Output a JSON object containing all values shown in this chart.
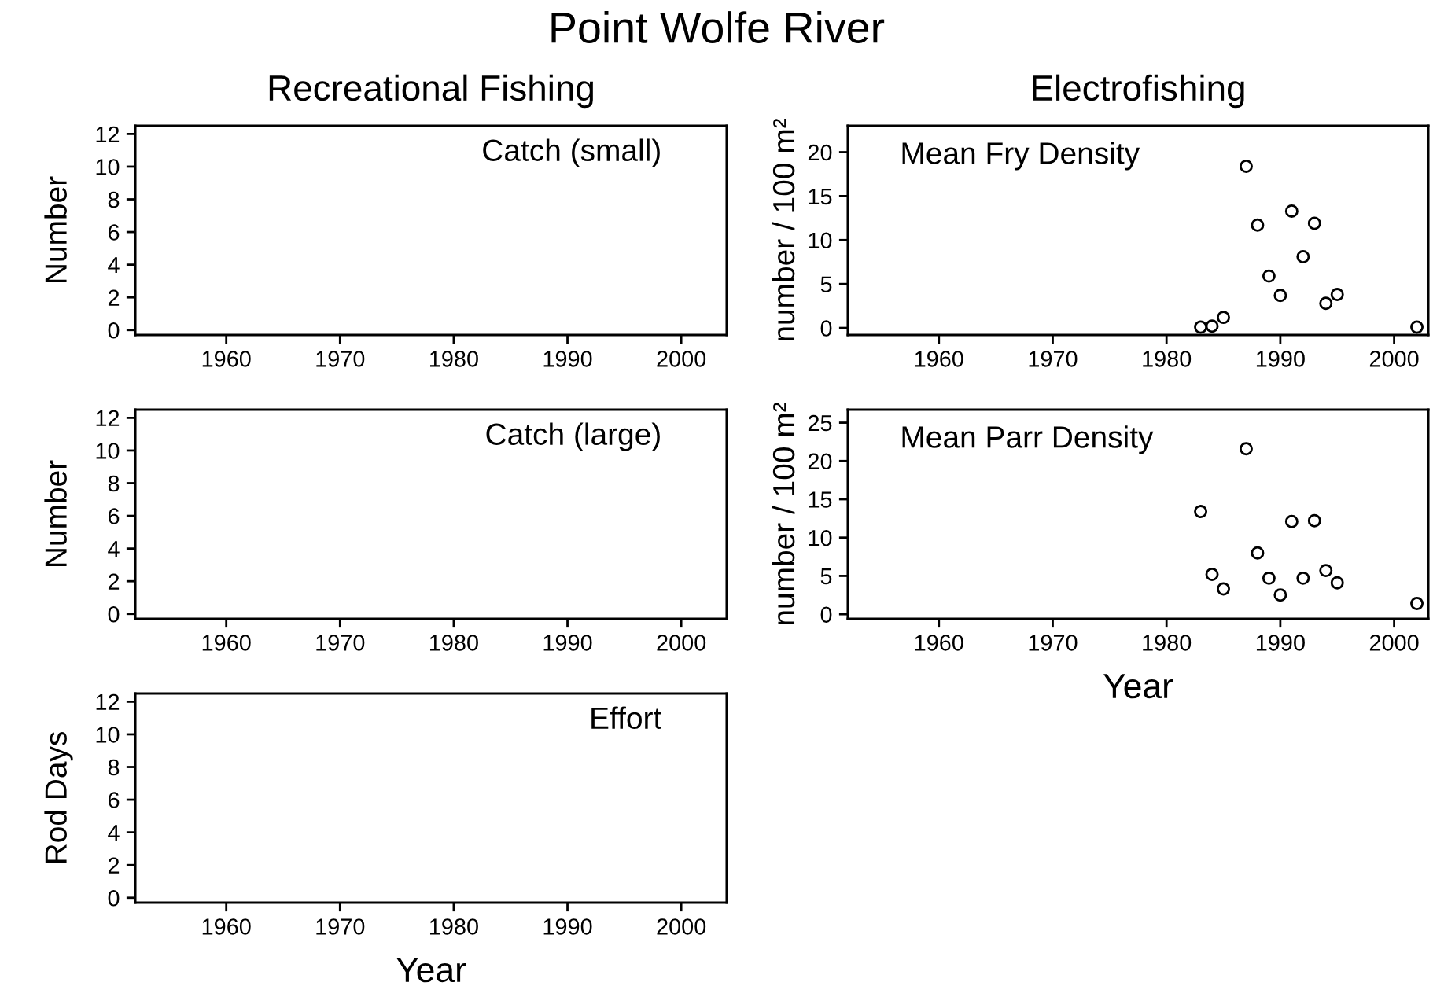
{
  "chart_data": [
    {
      "type": "scatter",
      "title": "Catch (small)",
      "ylabel": "Number",
      "annotations": [
        "Point Wolfe River",
        "Recreational Fishing"
      ],
      "xlim": [
        1952,
        2004
      ],
      "xticks": [
        1960,
        1970,
        1980,
        1990,
        2000
      ],
      "ylim": [
        -0.3,
        12.5
      ],
      "yticks": [
        0,
        2,
        4,
        6,
        8,
        10,
        12
      ]
    },
    {
      "type": "scatter",
      "title": "Mean Fry Density",
      "ylabel": "number / 100 m²",
      "annotations": [
        "Electrofishing"
      ],
      "x": [
        1983,
        1984,
        1985,
        1987,
        1988,
        1989,
        1990,
        1991,
        1992,
        1993,
        1994,
        1995,
        2002
      ],
      "series": [
        {
          "color": "#000000",
          "values": [
            0.1,
            0.2,
            1.2,
            18.4,
            11.7,
            5.9,
            3.7,
            13.3,
            8.1,
            11.9,
            2.8,
            3.8,
            0.1
          ]
        }
      ],
      "marker": "circle",
      "xlim": [
        1952,
        2003
      ],
      "xticks": [
        1960,
        1970,
        1980,
        1990,
        2000
      ],
      "ylim": [
        -0.8,
        23
      ],
      "yticks": [
        0,
        5,
        10,
        15,
        20
      ]
    },
    {
      "type": "scatter",
      "title": "Catch (large)",
      "ylabel": "Number",
      "xlim": [
        1952,
        2004
      ],
      "xticks": [
        1960,
        1970,
        1980,
        1990,
        2000
      ],
      "ylim": [
        -0.3,
        12.5
      ],
      "yticks": [
        0,
        2,
        4,
        6,
        8,
        10,
        12
      ]
    },
    {
      "type": "scatter",
      "title": "Mean Parr Density",
      "ylabel": "number / 100 m²",
      "xlabel": "Year",
      "x": [
        1983,
        1984,
        1985,
        1987,
        1988,
        1989,
        1990,
        1991,
        1992,
        1993,
        1994,
        1995,
        2002
      ],
      "series": [
        {
          "color": "#000000",
          "values": [
            13.4,
            5.2,
            3.3,
            21.6,
            8.0,
            4.7,
            2.5,
            12.1,
            4.7,
            12.2,
            5.7,
            4.1,
            1.4
          ]
        }
      ],
      "marker": "circle",
      "xlim": [
        1952,
        2003
      ],
      "xticks": [
        1960,
        1970,
        1980,
        1990,
        2000
      ],
      "ylim": [
        -0.6,
        26.7
      ],
      "yticks": [
        0,
        5,
        10,
        15,
        20,
        25
      ]
    },
    {
      "type": "scatter",
      "title": "Effort",
      "ylabel": "Rod Days",
      "xlabel": "Year",
      "xlim": [
        1952,
        2004
      ],
      "xticks": [
        1960,
        1970,
        1980,
        1990,
        2000
      ],
      "ylim": [
        -0.3,
        12.5
      ],
      "yticks": [
        0,
        2,
        4,
        6,
        8,
        10,
        12
      ]
    }
  ]
}
